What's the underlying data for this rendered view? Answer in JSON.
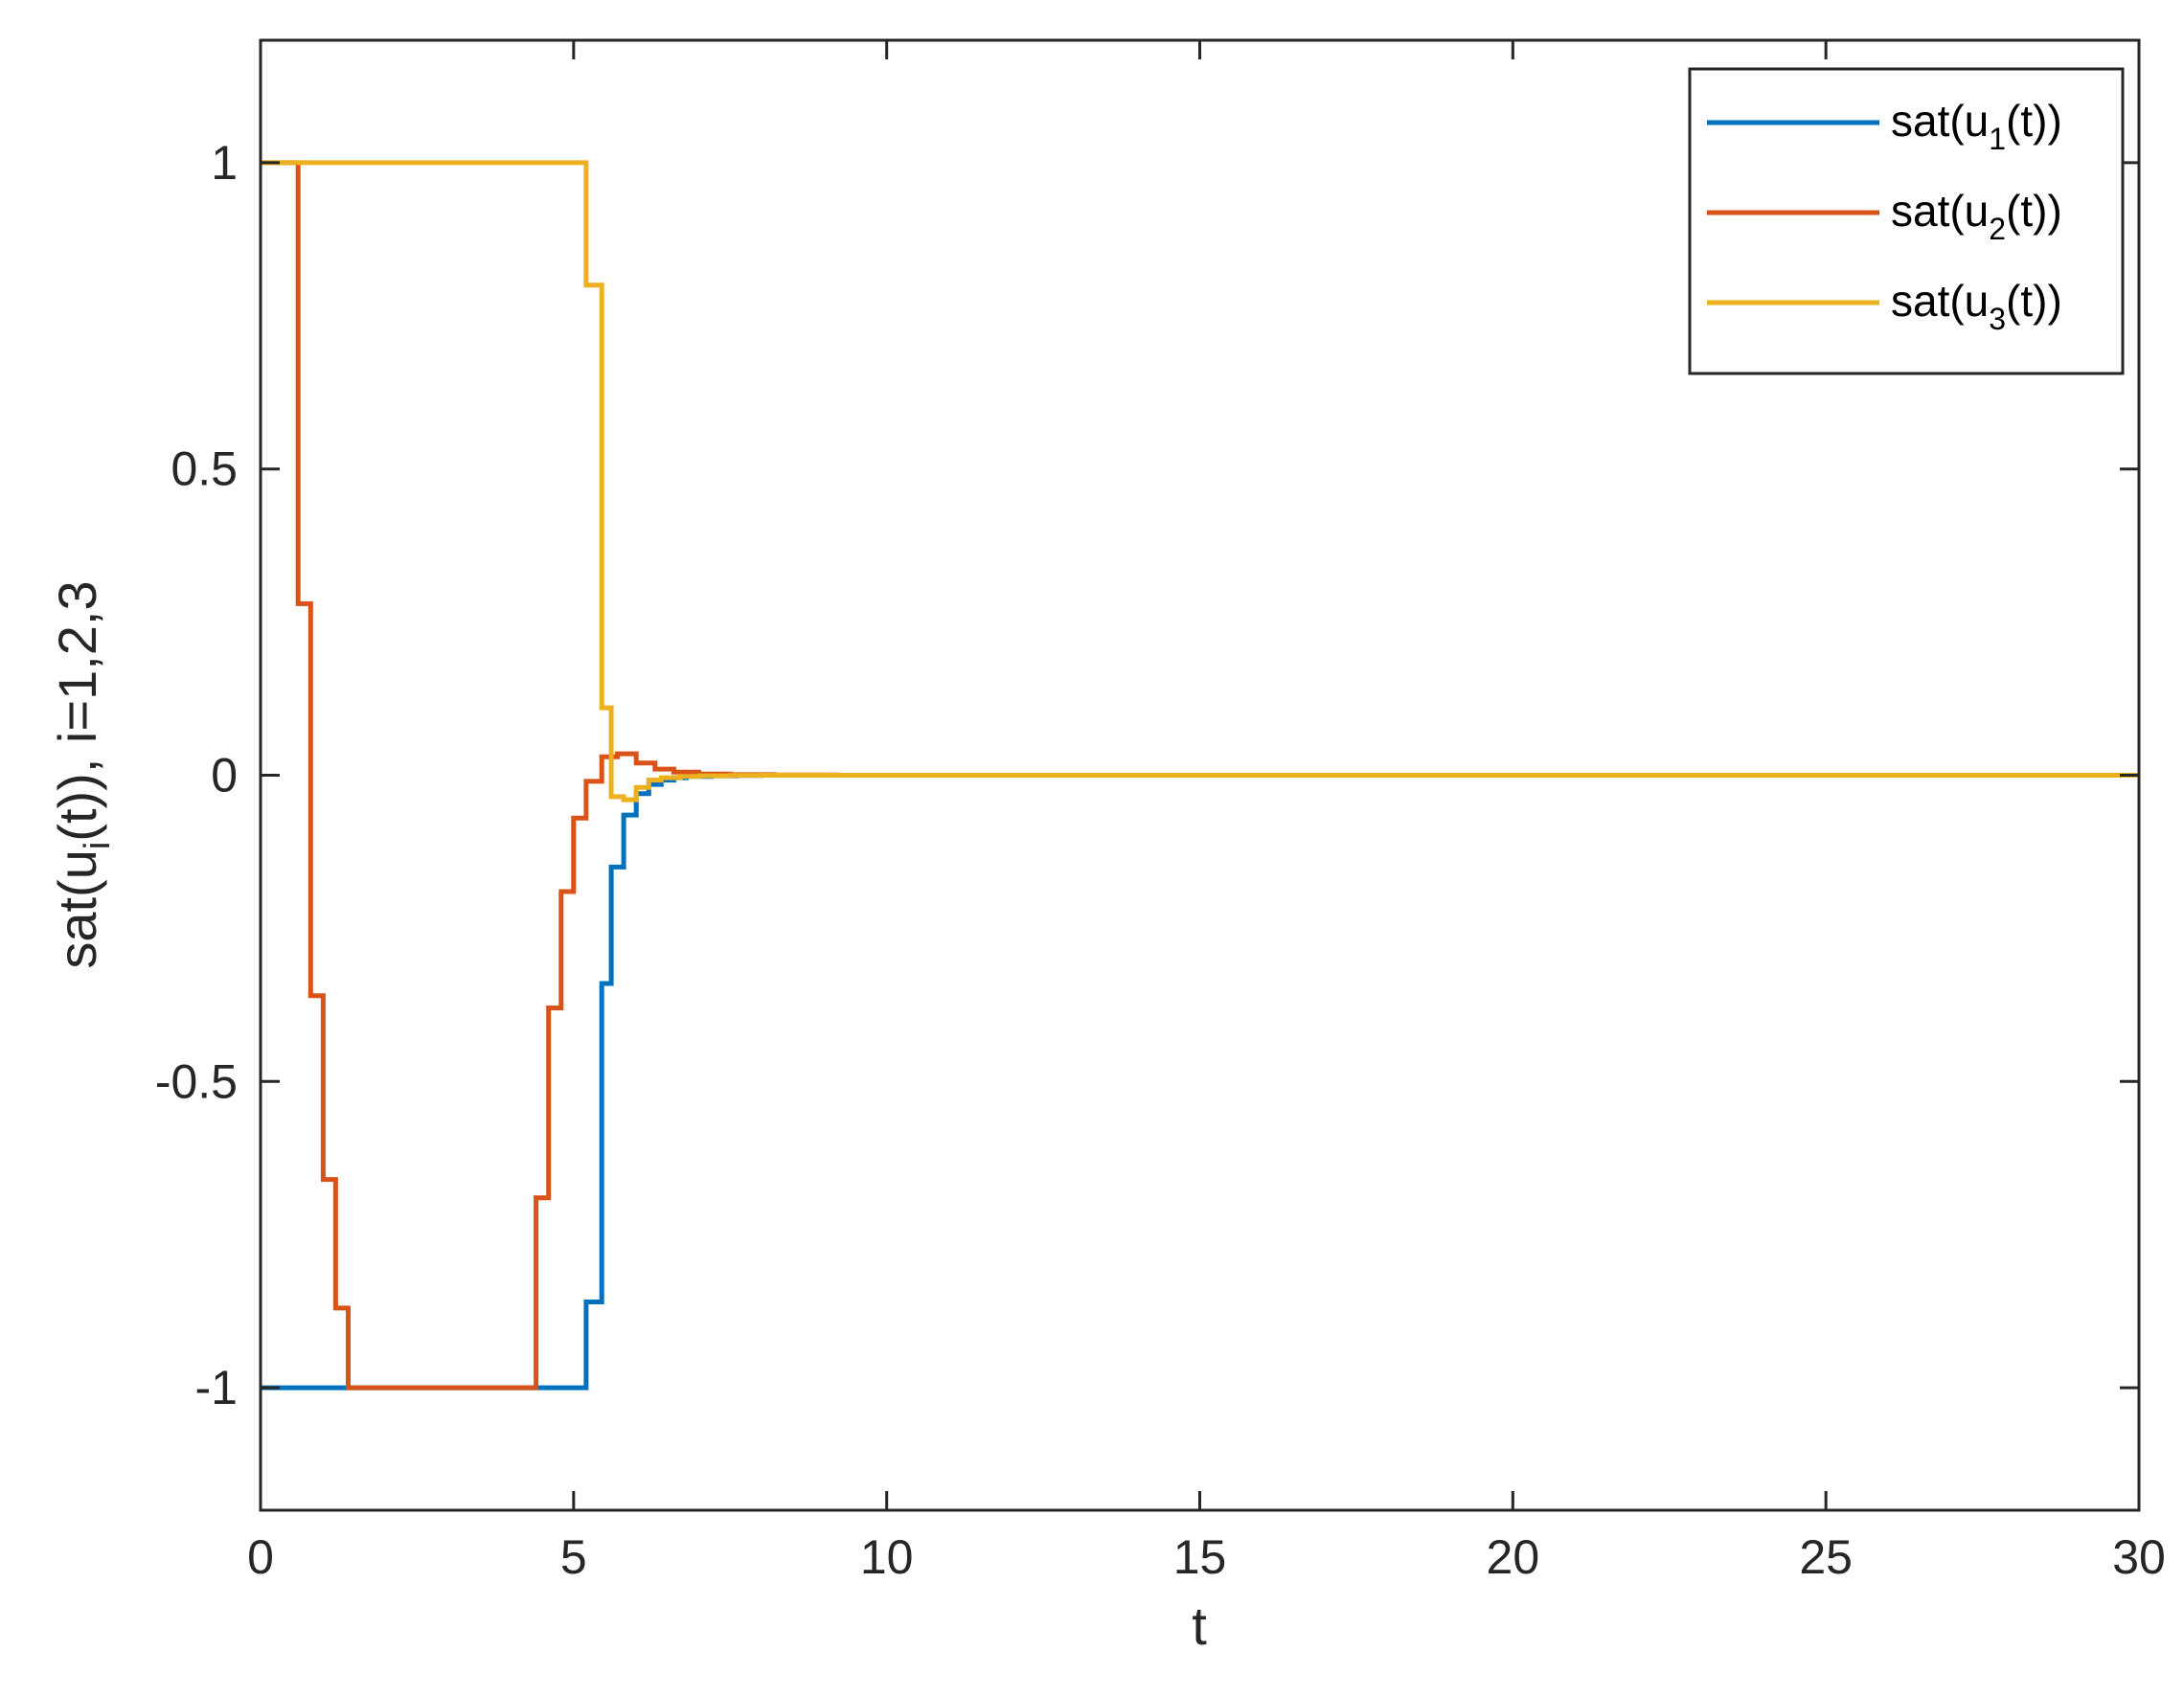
{
  "chart_data": {
    "type": "line",
    "xlabel": "t",
    "ylabel": {
      "base": "sat(u",
      "sub": "i",
      "rest": "(t)), i=1,2,3"
    },
    "xlim": [
      0,
      30
    ],
    "ylim": [
      -1.2,
      1.2
    ],
    "xticks": [
      0,
      5,
      10,
      15,
      20,
      25,
      30
    ],
    "xtick_labels": [
      "0",
      "5",
      "10",
      "15",
      "20",
      "25",
      "30"
    ],
    "yticks": [
      -1,
      -0.5,
      0,
      0.5,
      1
    ],
    "ytick_labels": [
      "-1",
      "-0.5",
      "0",
      "0.5",
      "1"
    ],
    "grid": false,
    "legend_position": "top-right",
    "series": [
      {
        "name": "sat(u1(t))",
        "label": {
          "base": "sat(u",
          "sub": "1",
          "rest": "(t))"
        },
        "color": "#0072BD",
        "step": "post",
        "x": [
          0,
          5.2,
          5.45,
          5.6,
          5.8,
          6.0,
          6.2,
          6.4,
          6.6,
          6.8,
          7.2,
          7.6,
          8.0,
          30
        ],
        "y": [
          -1,
          -0.86,
          -0.34,
          -0.15,
          -0.065,
          -0.03,
          -0.015,
          -0.008,
          -0.004,
          -0.002,
          -0.001,
          -0.0005,
          0,
          0
        ]
      },
      {
        "name": "sat(u2(t))",
        "label": {
          "base": "sat(u",
          "sub": "2",
          "rest": "(t))"
        },
        "color": "#D95319",
        "step": "post",
        "x": [
          0,
          0.6,
          0.8,
          1.0,
          1.2,
          1.4,
          4.4,
          4.6,
          4.8,
          5.0,
          5.2,
          5.45,
          5.7,
          6.0,
          6.3,
          6.6,
          7.0,
          7.5,
          8.2,
          9.2,
          30
        ],
        "y": [
          1,
          0.28,
          -0.36,
          -0.66,
          -0.87,
          -1,
          -0.69,
          -0.38,
          -0.19,
          -0.07,
          -0.01,
          0.03,
          0.035,
          0.02,
          0.01,
          0.005,
          0.002,
          0.001,
          0.0005,
          0,
          0
        ]
      },
      {
        "name": "sat(u3(t))",
        "label": {
          "base": "sat(u",
          "sub": "3",
          "rest": "(t))"
        },
        "color": "#EDB120",
        "step": "post",
        "x": [
          0,
          5.2,
          5.45,
          5.6,
          5.8,
          6.0,
          6.2,
          6.4,
          6.7,
          7.0,
          7.5,
          8.0,
          30
        ],
        "y": [
          1,
          0.8,
          0.11,
          -0.035,
          -0.04,
          -0.02,
          -0.008,
          -0.004,
          -0.002,
          -0.001,
          -0.0005,
          0,
          0
        ]
      }
    ]
  }
}
